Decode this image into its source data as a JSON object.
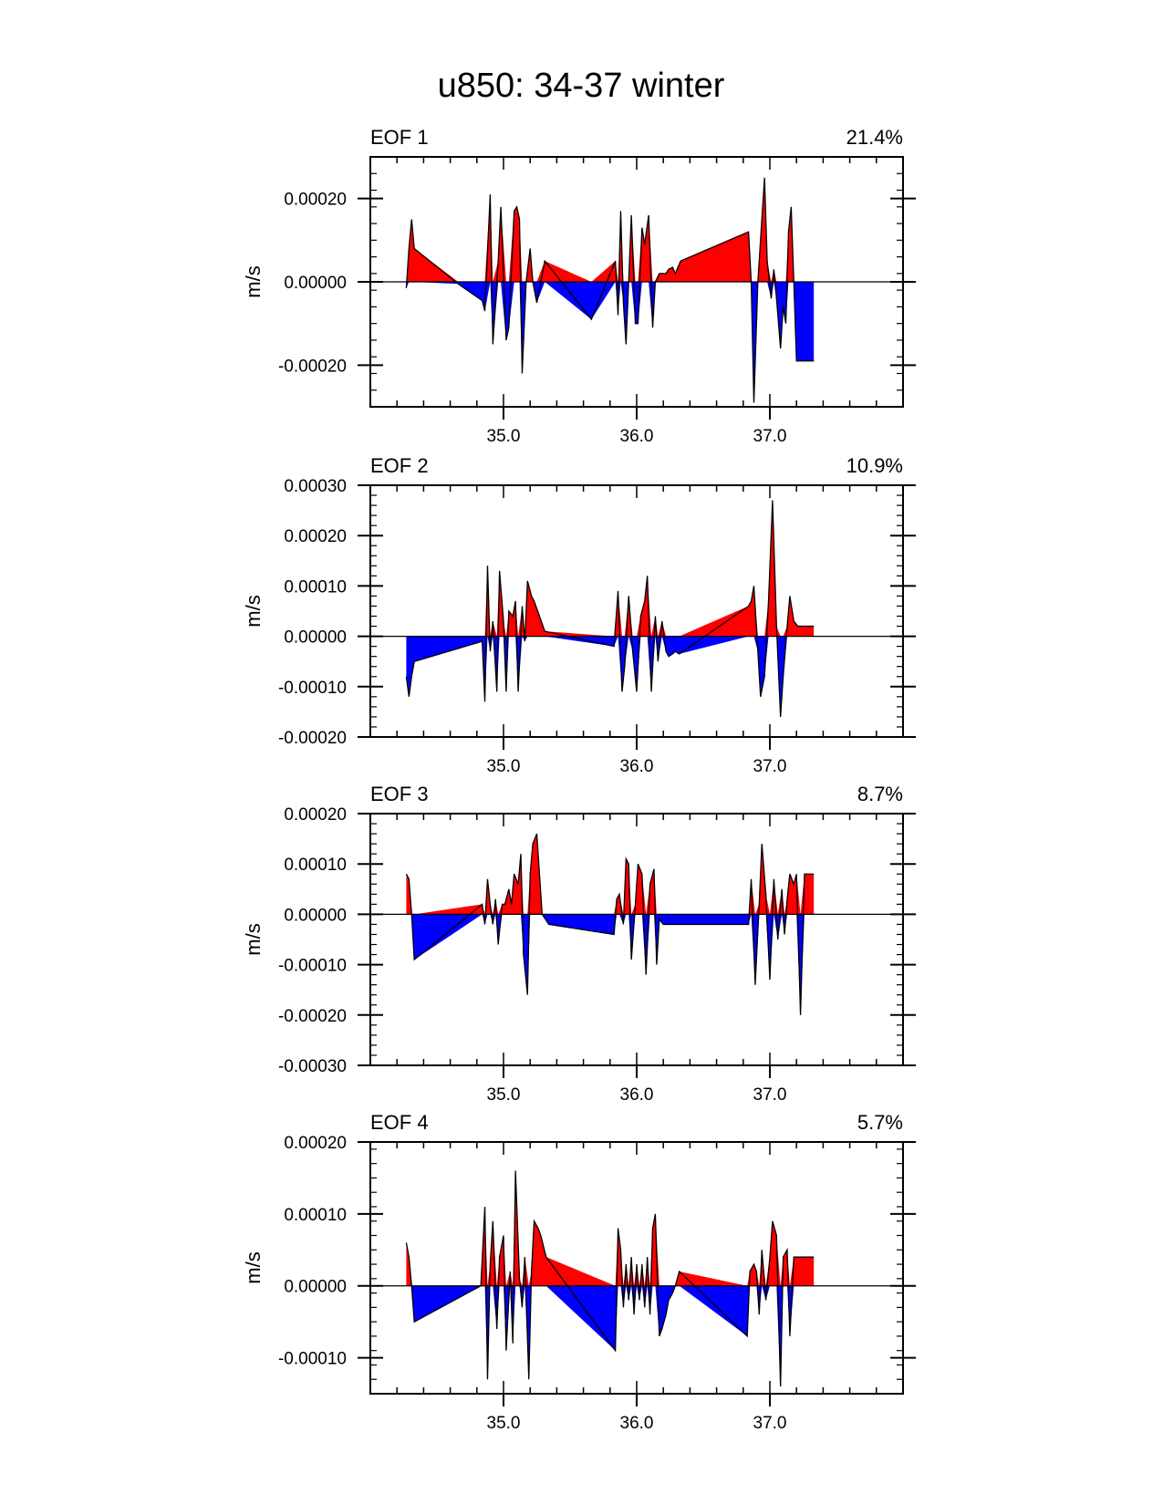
{
  "figure_title": "u850: 34-37 winter",
  "colors": {
    "positive_fill": "#ff0000",
    "negative_fill": "#0000ff",
    "line": "#000000",
    "background": "#ffffff"
  },
  "chart_data": [
    {
      "type": "area",
      "title": "EOF 1",
      "percent_label": "21.4%",
      "ylabel": "m/s",
      "xlabel": "",
      "xlim": [
        34.0,
        38.0
      ],
      "ylim": [
        -0.0003,
        0.0003
      ],
      "xticks": [
        35.0,
        36.0,
        37.0
      ],
      "xtick_labels": [
        "35.0",
        "36.0",
        "37.0"
      ],
      "yticks": [
        -0.0002,
        0.0,
        0.0002
      ],
      "ytick_labels": [
        "-0.00020",
        "0.00000",
        "0.00020"
      ],
      "series": [
        {
          "name": "EOF 1",
          "x": [
            34.27,
            34.29,
            34.31,
            34.33,
            34.66,
            34.84,
            34.86,
            34.9,
            34.92,
            34.96,
            34.98,
            35.02,
            35.04,
            35.08,
            35.1,
            35.12,
            35.14,
            35.17,
            35.2,
            35.22,
            35.25,
            35.31,
            35.66,
            35.84,
            35.86,
            35.88,
            35.9,
            35.92,
            35.94,
            35.96,
            35.99,
            36.01,
            36.04,
            36.06,
            36.09,
            36.12,
            36.14,
            36.17,
            36.2,
            36.22,
            36.24,
            36.27,
            36.29,
            36.33,
            36.84,
            36.86,
            36.88,
            36.91,
            36.93,
            36.96,
            36.98,
            37.01,
            37.03,
            37.05,
            37.08,
            37.1,
            37.12,
            37.14,
            37.16,
            37.18,
            37.2,
            37.22,
            37.25,
            37.27,
            37.3,
            37.33
          ],
          "values": [
            -1.5e-05,
            8e-05,
            0.00015,
            8e-05,
            -5e-06,
            -4.5e-05,
            -7e-05,
            0.00021,
            -0.00015,
            5e-05,
            0.00018,
            -0.00014,
            -0.00011,
            0.00017,
            0.00018,
            0.00015,
            -0.00022,
            0.0,
            8e-05,
            0.0,
            -5e-05,
            5e-05,
            -9e-05,
            5e-05,
            -8e-05,
            0.00017,
            -5e-05,
            -0.00015,
            0.0,
            0.00016,
            -0.0001,
            -0.0001,
            0.00013,
            9e-05,
            0.00016,
            -0.00011,
            0.0,
            2e-05,
            2e-05,
            2e-05,
            3e-05,
            3.5e-05,
            2e-05,
            5e-05,
            0.00012,
            0.0,
            -0.00029,
            0.0,
            0.0001,
            0.00025,
            5e-05,
            -4e-05,
            3e-05,
            -4e-05,
            -0.00016,
            -6e-05,
            -0.0001,
            0.00012,
            0.00018,
            0.0,
            -0.00019,
            -0.00019,
            -0.00019,
            -0.00019,
            -0.00019,
            -0.00019
          ]
        }
      ]
    },
    {
      "type": "area",
      "title": "EOF 2",
      "percent_label": "10.9%",
      "ylabel": "m/s",
      "xlabel": "",
      "xlim": [
        34.0,
        38.0
      ],
      "ylim": [
        -0.0002,
        0.0003
      ],
      "xticks": [
        35.0,
        36.0,
        37.0
      ],
      "xtick_labels": [
        "35.0",
        "36.0",
        "37.0"
      ],
      "yticks": [
        -0.0002,
        -0.0001,
        0.0,
        0.0001,
        0.0002,
        0.0003
      ],
      "ytick_labels": [
        "-0.00020",
        "-0.00010",
        "0.00000",
        "0.00010",
        "0.00020",
        "0.00030"
      ],
      "series": [
        {
          "name": "EOF 2",
          "x": [
            34.27,
            34.29,
            34.31,
            34.33,
            34.84,
            34.86,
            34.88,
            34.9,
            34.92,
            34.95,
            34.97,
            35.0,
            35.02,
            35.04,
            35.07,
            35.09,
            35.11,
            35.14,
            35.16,
            35.18,
            35.21,
            35.23,
            35.27,
            35.31,
            35.83,
            35.86,
            35.89,
            35.91,
            35.94,
            35.97,
            36.0,
            36.03,
            36.06,
            36.08,
            36.11,
            36.14,
            36.16,
            36.19,
            36.22,
            36.24,
            36.27,
            36.29,
            36.32,
            36.84,
            36.86,
            36.88,
            36.91,
            36.93,
            36.96,
            36.99,
            37.02,
            37.05,
            37.08,
            37.1,
            37.13,
            37.15,
            37.18,
            37.21,
            37.24,
            37.27,
            37.3,
            37.32,
            37.33
          ],
          "values": [
            -8e-05,
            -0.00012,
            -8e-05,
            -5e-05,
            -1e-05,
            -0.00013,
            0.00014,
            -3e-05,
            3e-05,
            -0.00011,
            0.00013,
            3e-05,
            -0.00011,
            5e-05,
            4e-05,
            7e-05,
            -0.00011,
            6e-05,
            -1e-05,
            0.00011,
            8e-05,
            7e-05,
            4e-05,
            1e-05,
            -2e-05,
            9e-05,
            -0.00011,
            -6e-05,
            8e-05,
            -3e-05,
            -0.00011,
            4e-05,
            7e-05,
            0.00012,
            -0.00011,
            4e-05,
            -5e-05,
            3e-05,
            -3e-05,
            -4e-05,
            -3.5e-05,
            -3e-05,
            -3.5e-05,
            6e-05,
            7e-05,
            0.0001,
            -3e-05,
            -0.00012,
            -8e-05,
            7e-05,
            0.00027,
            2e-05,
            -0.00016,
            -8e-05,
            2e-05,
            8e-05,
            3e-05,
            2e-05,
            2e-05,
            2e-05,
            2e-05,
            2e-05,
            2e-05
          ]
        }
      ]
    },
    {
      "type": "area",
      "title": "EOF 3",
      "percent_label": "8.7%",
      "ylabel": "m/s",
      "xlabel": "",
      "xlim": [
        34.0,
        38.0
      ],
      "ylim": [
        -0.0003,
        0.0002
      ],
      "xticks": [
        35.0,
        36.0,
        37.0
      ],
      "xtick_labels": [
        "35.0",
        "36.0",
        "37.0"
      ],
      "yticks": [
        -0.0003,
        -0.0002,
        -0.0001,
        0.0,
        0.0001,
        0.0002
      ],
      "ytick_labels": [
        "-0.00030",
        "-0.00020",
        "-0.00010",
        "0.00000",
        "0.00010",
        "0.00020"
      ],
      "series": [
        {
          "name": "EOF 3",
          "x": [
            34.27,
            34.29,
            34.31,
            34.33,
            34.84,
            34.86,
            34.88,
            34.9,
            34.92,
            34.94,
            34.96,
            34.99,
            35.01,
            35.04,
            35.06,
            35.08,
            35.11,
            35.13,
            35.15,
            35.18,
            35.2,
            35.22,
            35.25,
            35.29,
            35.34,
            35.83,
            35.85,
            35.87,
            35.9,
            35.92,
            35.94,
            35.96,
            35.99,
            36.01,
            36.04,
            36.07,
            36.1,
            36.13,
            36.15,
            36.17,
            36.2,
            36.22,
            36.24,
            36.84,
            36.86,
            36.89,
            36.92,
            36.94,
            36.97,
            37.0,
            37.03,
            37.06,
            37.09,
            37.11,
            37.13,
            37.15,
            37.18,
            37.2,
            37.23,
            37.26,
            37.29,
            37.31,
            37.33
          ],
          "values": [
            8e-05,
            7e-05,
            0.0,
            -9e-05,
            2e-05,
            -2e-05,
            7e-05,
            2e-05,
            -2e-05,
            3e-05,
            -6e-05,
            2e-05,
            2e-05,
            5e-05,
            2e-05,
            8e-05,
            6e-05,
            0.00012,
            -8e-05,
            -0.00016,
            8e-05,
            0.00014,
            0.00016,
            0.0,
            -2e-05,
            -4e-05,
            3e-05,
            4e-05,
            -2e-05,
            0.00011,
            0.0001,
            -9e-05,
            2e-05,
            0.0001,
            8e-05,
            -0.00012,
            6e-05,
            9e-05,
            -0.0001,
            -1e-05,
            -2e-05,
            -2e-05,
            -2e-05,
            -2e-05,
            7e-05,
            -0.00014,
            2e-05,
            0.00014,
            4e-05,
            -0.00013,
            7e-05,
            -5e-05,
            5e-05,
            -4e-05,
            3e-05,
            8e-05,
            6e-05,
            8e-05,
            -0.0002,
            8e-05,
            8e-05,
            8e-05,
            8e-05
          ]
        }
      ]
    },
    {
      "type": "area",
      "title": "EOF 4",
      "percent_label": "5.7%",
      "ylabel": "m/s",
      "xlabel": "",
      "xlim": [
        34.0,
        38.0
      ],
      "ylim": [
        -0.00015,
        0.0002
      ],
      "xticks": [
        35.0,
        36.0,
        37.0
      ],
      "xtick_labels": [
        "35.0",
        "36.0",
        "37.0"
      ],
      "yticks": [
        -0.0001,
        0.0,
        0.0001,
        0.0002
      ],
      "ytick_labels": [
        "-0.00010",
        "0.00000",
        "0.00010",
        "0.00020"
      ],
      "series": [
        {
          "name": "EOF 4",
          "x": [
            34.27,
            34.29,
            34.31,
            34.33,
            34.83,
            34.86,
            34.88,
            34.9,
            34.92,
            34.95,
            34.97,
            35.0,
            35.02,
            35.05,
            35.07,
            35.09,
            35.12,
            35.14,
            35.16,
            35.19,
            35.21,
            35.23,
            35.26,
            35.28,
            35.32,
            35.84,
            35.86,
            35.88,
            35.9,
            35.92,
            35.94,
            35.96,
            35.98,
            36.0,
            36.02,
            36.04,
            36.06,
            36.08,
            36.1,
            36.12,
            36.14,
            36.17,
            36.19,
            36.22,
            36.24,
            36.27,
            36.29,
            36.32,
            36.83,
            36.85,
            36.88,
            36.9,
            36.92,
            36.94,
            36.97,
            37.0,
            37.02,
            37.05,
            37.08,
            37.1,
            37.13,
            37.15,
            37.18,
            37.2,
            37.23,
            37.26,
            37.28,
            37.31,
            37.33
          ],
          "values": [
            6e-05,
            4e-05,
            0.0,
            -5e-05,
            0.0,
            0.00011,
            -0.00013,
            3e-05,
            9e-05,
            -6e-05,
            4e-05,
            7e-05,
            -9e-05,
            2e-05,
            -8e-05,
            0.00016,
            1e-05,
            -3e-05,
            4e-05,
            -0.00013,
            2e-05,
            9e-05,
            8e-05,
            7e-05,
            4e-05,
            -9e-05,
            8e-05,
            5e-05,
            -3e-05,
            3e-05,
            -2e-05,
            4e-05,
            -4e-05,
            3e-05,
            -2e-05,
            3e-05,
            -3e-05,
            4e-05,
            -4e-05,
            8e-05,
            0.0001,
            -7e-05,
            -6e-05,
            -4e-05,
            -2e-05,
            -1e-05,
            0.0,
            2e-05,
            -7e-05,
            2e-05,
            3e-05,
            2e-05,
            -4e-05,
            5e-05,
            -2e-05,
            4e-05,
            9e-05,
            7e-05,
            -0.00014,
            4e-05,
            5e-05,
            -7e-05,
            4e-05,
            4e-05,
            4e-05,
            4e-05,
            4e-05,
            4e-05,
            4e-05
          ]
        }
      ]
    }
  ]
}
